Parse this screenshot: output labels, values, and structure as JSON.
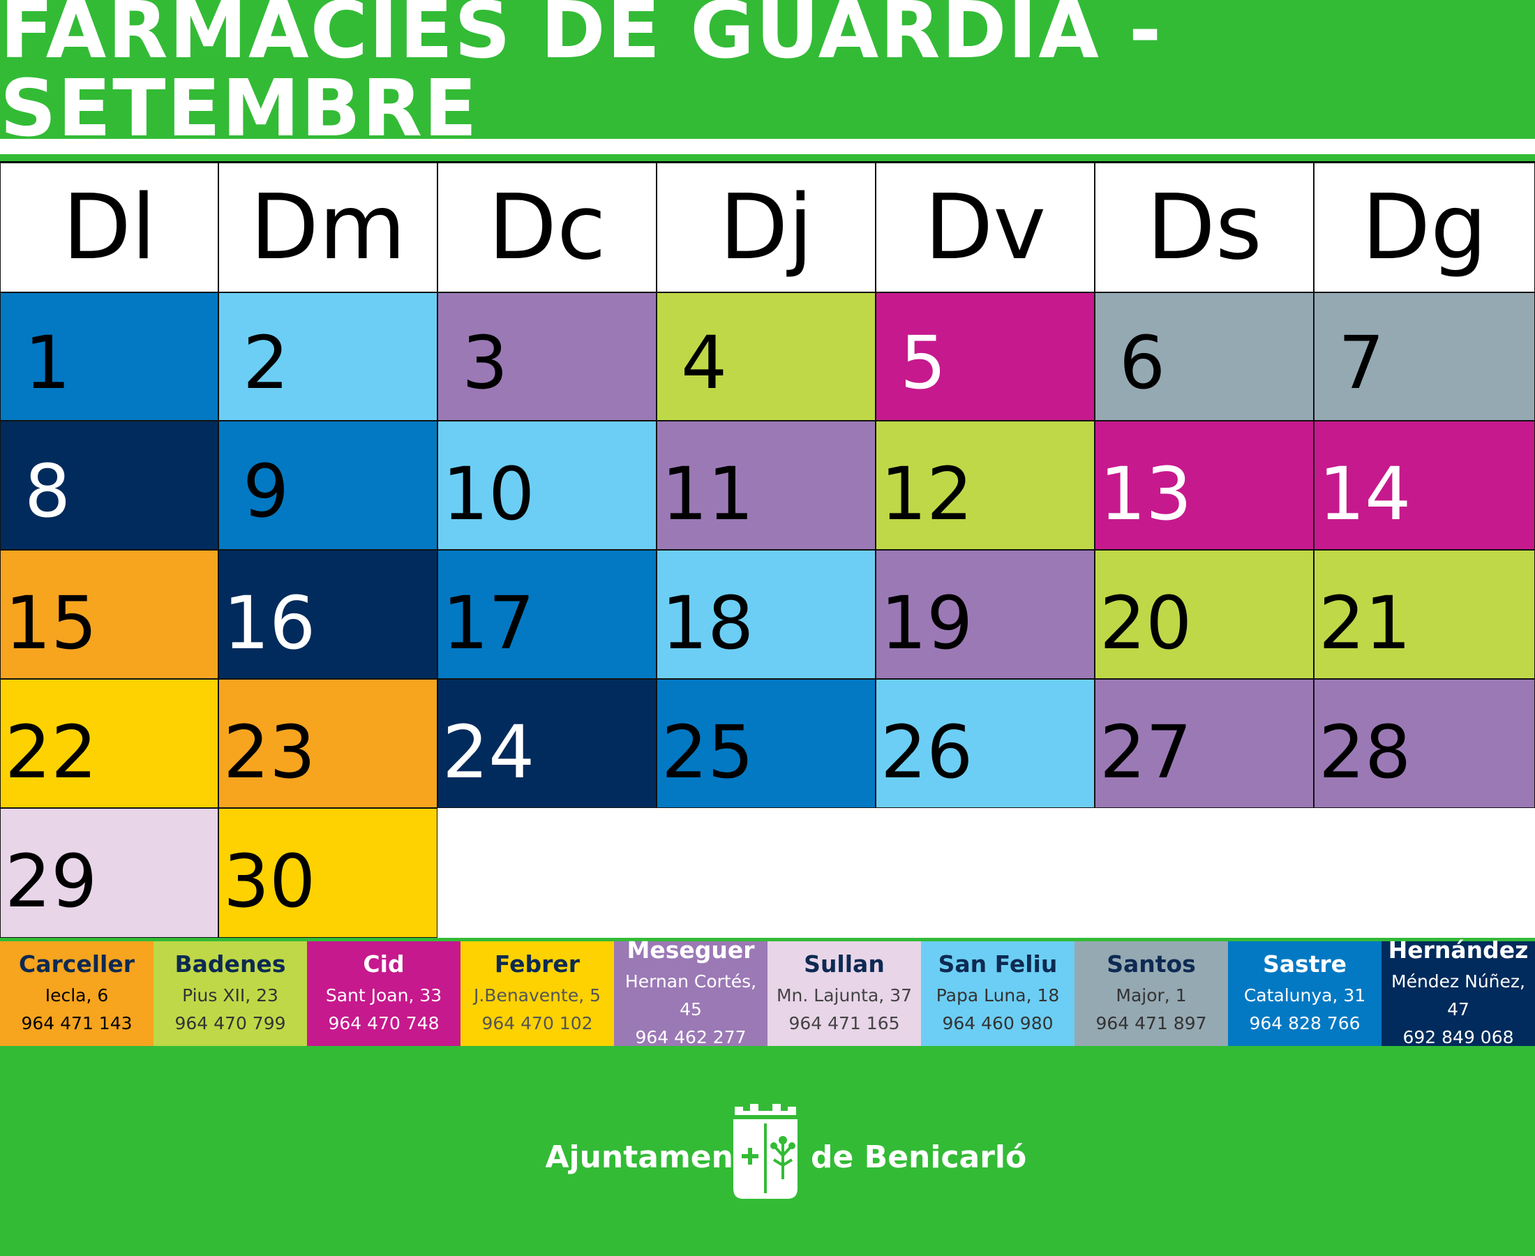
{
  "title": "FARMÀCIES DE GUÀRDIA - SETEMBRE",
  "weekdays": [
    "Dl",
    "Dm",
    "Dc",
    "Dj",
    "Dv",
    "Ds",
    "Dg"
  ],
  "days": [
    {
      "n": "1",
      "color": "#0379c3",
      "text": "#000000"
    },
    {
      "n": "2",
      "color": "#6ccef4",
      "text": "#000000"
    },
    {
      "n": "3",
      "color": "#9b79b5",
      "text": "#000000"
    },
    {
      "n": "4",
      "color": "#bfd847",
      "text": "#000000"
    },
    {
      "n": "5",
      "color": "#c6198d",
      "text": "#ffffff"
    },
    {
      "n": "6",
      "color": "#95a9b3",
      "text": "#000000"
    },
    {
      "n": "7",
      "color": "#95a9b3",
      "text": "#000000"
    },
    {
      "n": "8",
      "color": "#002b5c",
      "text": "#ffffff"
    },
    {
      "n": "9",
      "color": "#0379c3",
      "text": "#000000"
    },
    {
      "n": "10",
      "color": "#6ccef4",
      "text": "#000000"
    },
    {
      "n": "11",
      "color": "#9b79b5",
      "text": "#000000"
    },
    {
      "n": "12",
      "color": "#bfd847",
      "text": "#000000"
    },
    {
      "n": "13",
      "color": "#c6198d",
      "text": "#ffffff"
    },
    {
      "n": "14",
      "color": "#c6198d",
      "text": "#ffffff"
    },
    {
      "n": "15",
      "color": "#f7a41f",
      "text": "#000000"
    },
    {
      "n": "16",
      "color": "#002b5c",
      "text": "#ffffff"
    },
    {
      "n": "17",
      "color": "#0379c3",
      "text": "#000000"
    },
    {
      "n": "18",
      "color": "#6ccef4",
      "text": "#000000"
    },
    {
      "n": "19",
      "color": "#9b79b5",
      "text": "#000000"
    },
    {
      "n": "20",
      "color": "#bfd847",
      "text": "#000000"
    },
    {
      "n": "21",
      "color": "#bfd847",
      "text": "#000000"
    },
    {
      "n": "22",
      "color": "#fdd200",
      "text": "#000000"
    },
    {
      "n": "23",
      "color": "#f7a41f",
      "text": "#000000"
    },
    {
      "n": "24",
      "color": "#002b5c",
      "text": "#ffffff"
    },
    {
      "n": "25",
      "color": "#0379c3",
      "text": "#000000"
    },
    {
      "n": "26",
      "color": "#6ccef4",
      "text": "#000000"
    },
    {
      "n": "27",
      "color": "#9b79b5",
      "text": "#000000"
    },
    {
      "n": "28",
      "color": "#9b79b5",
      "text": "#000000"
    },
    {
      "n": "29",
      "color": "#e8d5e8",
      "text": "#000000"
    },
    {
      "n": "30",
      "color": "#fdd200",
      "text": "#000000"
    }
  ],
  "pharmacies": [
    {
      "name": "Carceller",
      "address": "Iecla, 6",
      "phone": "964 471 143",
      "color": "#f7a41f",
      "name_color": "#0d2a52",
      "text_color": "#000000"
    },
    {
      "name": "Badenes",
      "address": "Pius XII, 23",
      "phone": "964 470 799",
      "color": "#bfd847",
      "name_color": "#0d2a52",
      "text_color": "#333333"
    },
    {
      "name": "Cid",
      "address": "Sant Joan, 33",
      "phone": "964 470 748",
      "color": "#c6198d",
      "name_color": "#ffffff",
      "text_color": "#ffffff"
    },
    {
      "name": "Febrer",
      "address": "J.Benavente, 5",
      "phone": "964 470 102",
      "color": "#fdd200",
      "name_color": "#0d2a52",
      "text_color": "#555555"
    },
    {
      "name": "Meseguer",
      "address": "Hernan Cortés, 45",
      "phone": "964 462 277",
      "color": "#9b79b5",
      "name_color": "#ffffff",
      "text_color": "#ffffff"
    },
    {
      "name": "Sullan",
      "address": "Mn. Lajunta, 37",
      "phone": "964 471 165",
      "color": "#e8d5e8",
      "name_color": "#0d2a52",
      "text_color": "#444444"
    },
    {
      "name": "San Feliu",
      "address": "Papa Luna, 18",
      "phone": "964 460 980",
      "color": "#6ccef4",
      "name_color": "#0d2a52",
      "text_color": "#333333"
    },
    {
      "name": "Santos",
      "address": "Major, 1",
      "phone": "964 471 897",
      "color": "#95a9b3",
      "name_color": "#0d2a52",
      "text_color": "#333333"
    },
    {
      "name": "Sastre",
      "address": "Catalunya, 31",
      "phone": "964 828 766",
      "color": "#0379c3",
      "name_color": "#ffffff",
      "text_color": "#ffffff"
    },
    {
      "name": "Hernández",
      "address": "Méndez Núñez, 47",
      "phone": "692 849 068",
      "color": "#002b5c",
      "name_color": "#ffffff",
      "text_color": "#ffffff"
    }
  ],
  "footer": {
    "left": "Ajuntament",
    "right": "de Benicarló",
    "icon": "coat-of-arms-icon"
  }
}
